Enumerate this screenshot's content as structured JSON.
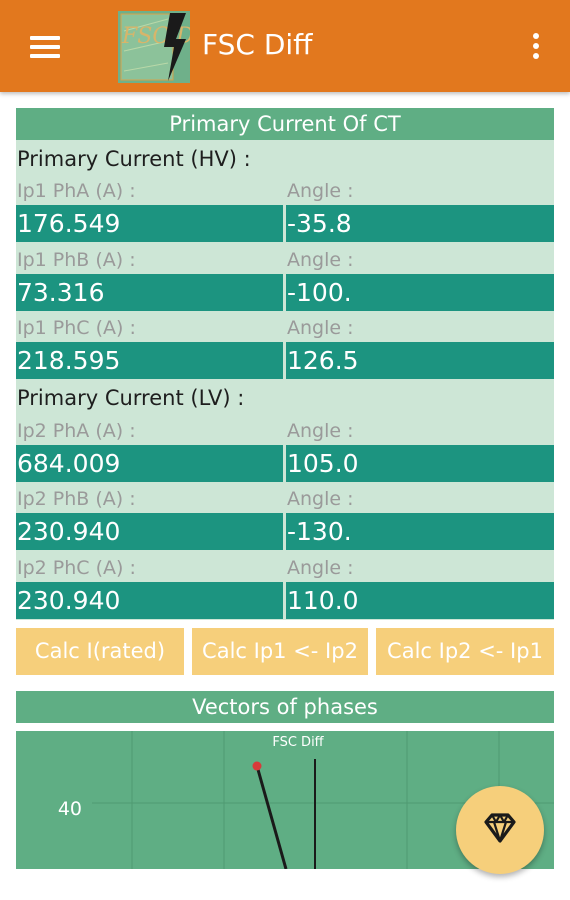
{
  "app": {
    "title": "FSC Diff",
    "logo_icon": "fsc-diff-logo-icon",
    "logo_text": "FSC Diff",
    "colors": {
      "toolbar": "#e2781e",
      "header": "#5fae84",
      "form_bg": "#cde6d6",
      "value_bg": "#1c9480",
      "button": "#f6cf7b"
    }
  },
  "toolbar": {
    "menu_icon": "hamburger-menu-icon",
    "overflow_icon": "more-vert-icon"
  },
  "section_title": "Primary Current Of CT",
  "hv": {
    "label": "Primary Current (HV) :",
    "rows": [
      {
        "current_label": "Ip1 PhA (A) :",
        "current_value": "176.549",
        "angle_label": "Angle :",
        "angle_value": "-35.8"
      },
      {
        "current_label": "Ip1 PhB (A) :",
        "current_value": "73.316",
        "angle_label": "Angle :",
        "angle_value": "-100."
      },
      {
        "current_label": "Ip1 PhC (A) :",
        "current_value": "218.595",
        "angle_label": "Angle :",
        "angle_value": "126.5"
      }
    ]
  },
  "lv": {
    "label": "Primary Current (LV) :",
    "rows": [
      {
        "current_label": "Ip2 PhA (A) :",
        "current_value": "684.009",
        "angle_label": "Angle :",
        "angle_value": "105.0"
      },
      {
        "current_label": "Ip2 PhB (A) :",
        "current_value": "230.940",
        "angle_label": "Angle :",
        "angle_value": "-130."
      },
      {
        "current_label": "Ip2 PhC (A) :",
        "current_value": "230.940",
        "angle_label": "Angle :",
        "angle_value": "110.0"
      }
    ]
  },
  "buttons": {
    "calc_rated": "Calc I(rated)",
    "calc_ip1": "Calc Ip1 <- Ip2",
    "calc_ip2": "Calc Ip2 <- Ip1"
  },
  "vectors": {
    "title": "Vectors of phases",
    "chart_title": "FSC Diff",
    "y_tick": "40"
  },
  "fab": {
    "icon": "diamond-icon"
  }
}
